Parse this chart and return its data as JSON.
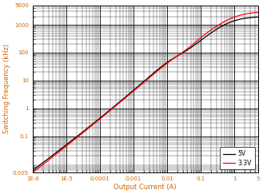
{
  "title": "",
  "xlabel": "Output Current (A)",
  "ylabel": "Switching Frequency (kHz)",
  "xlim": [
    1e-06,
    5
  ],
  "ylim": [
    0.005,
    5000
  ],
  "legend_labels": [
    "5V",
    "3.3V"
  ],
  "legend_colors": [
    "black",
    "red"
  ],
  "x_tick_values": [
    1e-06,
    1e-05,
    0.0001,
    0.001,
    0.01,
    0.1,
    1,
    5
  ],
  "x_tick_labels": [
    "1E-6",
    "1E-5",
    "0.0001",
    "0.001",
    "0.01",
    "0.1",
    "1",
    "5"
  ],
  "y_tick_values": [
    0.005,
    0.1,
    1,
    10,
    100,
    1000,
    5000
  ],
  "y_tick_labels": [
    "0.005",
    "0.1",
    "1",
    "10",
    "100",
    "1000",
    "5000"
  ],
  "xlabel_color": "#CC6600",
  "ylabel_color": "#CC6600",
  "tick_color": "#CC6600",
  "grid_major_color": "#000000",
  "grid_minor_color": "#000000",
  "grid_major_lw": 0.6,
  "grid_minor_lw": 0.25,
  "bg_color": "white",
  "line_width": 0.9,
  "figsize": [
    3.29,
    2.43
  ],
  "dpi": 100,
  "x_5V": [
    1e-06,
    1e-05,
    0.0001,
    0.001,
    0.01,
    0.05,
    0.1,
    0.3,
    0.5,
    1.0,
    2.0,
    5.0
  ],
  "y_5V": [
    0.006,
    0.05,
    0.45,
    4.5,
    45,
    150,
    280,
    700,
    1000,
    1400,
    1700,
    1900
  ],
  "x_33V": [
    1e-06,
    1e-05,
    0.0001,
    0.001,
    0.01,
    0.05,
    0.1,
    0.3,
    0.5,
    1.0,
    2.0,
    5.0
  ],
  "y_33V": [
    0.005,
    0.045,
    0.42,
    4.2,
    42,
    170,
    350,
    900,
    1300,
    1900,
    2400,
    2800
  ]
}
